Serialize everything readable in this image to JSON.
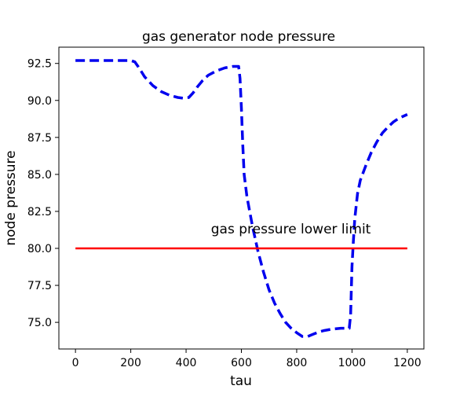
{
  "chart_data": {
    "type": "line",
    "title": "gas generator node pressure",
    "xlabel": "tau",
    "ylabel": "node pressure",
    "xlim": [
      -60,
      1260
    ],
    "ylim": [
      73.2,
      93.6
    ],
    "xticks": [
      0,
      200,
      400,
      600,
      800,
      1000,
      1200
    ],
    "yticks": [
      75.0,
      77.5,
      80.0,
      82.5,
      85.0,
      87.5,
      90.0,
      92.5
    ],
    "grid": false,
    "series": [
      {
        "style": "dashed",
        "color": "#0000ee",
        "x": [
          0,
          100,
          200,
          215,
          230,
          250,
          280,
          310,
          340,
          370,
          390,
          410,
          425,
          440,
          460,
          480,
          510,
          540,
          570,
          590,
          595,
          600,
          605,
          610,
          620,
          640,
          660,
          680,
          700,
          720,
          740,
          760,
          780,
          800,
          820,
          840,
          860,
          880,
          900,
          930,
          960,
          990,
          995,
          998,
          1000,
          1005,
          1010,
          1020,
          1030,
          1050,
          1070,
          1090,
          1110,
          1130,
          1150,
          1170,
          1200
        ],
        "y": [
          92.7,
          92.7,
          92.7,
          92.6,
          92.2,
          91.6,
          91.0,
          90.6,
          90.35,
          90.2,
          90.15,
          90.2,
          90.5,
          90.9,
          91.35,
          91.7,
          92.0,
          92.2,
          92.3,
          92.3,
          91.5,
          89.5,
          87.0,
          85.0,
          83.5,
          81.5,
          79.8,
          78.4,
          77.2,
          76.3,
          75.6,
          75.0,
          74.6,
          74.3,
          74.05,
          74.05,
          74.2,
          74.35,
          74.45,
          74.55,
          74.6,
          74.6,
          75.5,
          77.5,
          78.8,
          80.5,
          82.0,
          83.7,
          84.6,
          85.6,
          86.5,
          87.2,
          87.8,
          88.2,
          88.55,
          88.8,
          89.05
        ]
      },
      {
        "style": "solid",
        "color": "#ff0000",
        "x": [
          0,
          1200
        ],
        "y": [
          80.0,
          80.0
        ]
      }
    ],
    "annotations": [
      {
        "text": "gas pressure lower limit",
        "x": 490,
        "y": 81.0
      }
    ]
  }
}
